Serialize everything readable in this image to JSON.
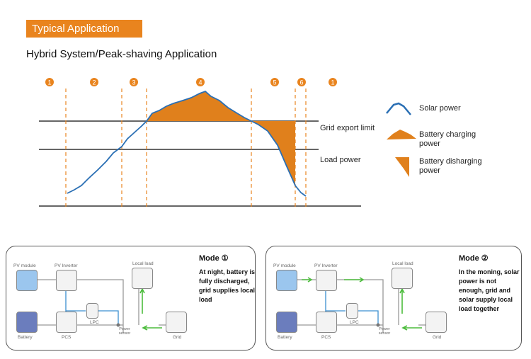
{
  "header": {
    "banner": "Typical Application",
    "subtitle": "Hybrid System/Peak-shaving Application"
  },
  "chart": {
    "phase_markers": [
      "1",
      "2",
      "3",
      "4",
      "5",
      "6",
      "1"
    ],
    "line_labels": {
      "export": "Grid export limit",
      "load": "Load power"
    },
    "legend": [
      {
        "label": "Solar power",
        "icon": "solar-curve-icon"
      },
      {
        "label": "Battery charging power",
        "icon": "charging-area-icon"
      },
      {
        "label": "Battery disharging power",
        "icon": "discharging-area-icon"
      }
    ],
    "colors": {
      "solar": "#2a6fb4",
      "battery": "#e0801c",
      "marker": "#e9841e"
    }
  },
  "panels": [
    {
      "mode": "Mode ①",
      "description": "At night, battery is fully discharged, grid supplies local load",
      "labels": {
        "pv": "PV module",
        "inverter": "PV Inverter",
        "load": "Local load",
        "lpc": "LPC",
        "battery": "Battery",
        "pcs": "PCS",
        "sensor": "Power sensor",
        "grid": "Grid"
      }
    },
    {
      "mode": "Mode ②",
      "description": "In the moning, solar power is not enough, grid and solar supply local load together",
      "labels": {
        "pv": "PV module",
        "inverter": "PV Inverter",
        "load": "Local load",
        "lpc": "LPC",
        "battery": "Battery",
        "pcs": "PCS",
        "sensor": "Power sensor",
        "grid": "Grid"
      }
    }
  ]
}
